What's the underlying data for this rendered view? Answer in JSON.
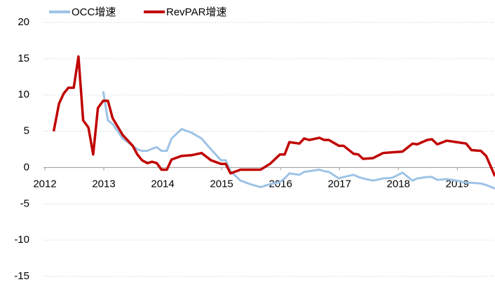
{
  "chart_data": {
    "type": "line",
    "x": [
      2012.15,
      2012.24,
      2012.32,
      2012.4,
      2012.49,
      2012.57,
      2012.65,
      2012.74,
      2012.82,
      2012.9,
      2012.99,
      2013.07,
      2013.15,
      2013.32,
      2013.49,
      2013.57,
      2013.65,
      2013.74,
      2013.82,
      2013.9,
      2013.98,
      2014.07,
      2014.15,
      2014.32,
      2014.49,
      2014.66,
      2014.82,
      2014.99,
      2015.07,
      2015.15,
      2015.32,
      2015.49,
      2015.66,
      2015.82,
      2015.99,
      2016.07,
      2016.15,
      2016.32,
      2016.4,
      2016.49,
      2016.66,
      2016.74,
      2016.82,
      2016.99,
      2017.07,
      2017.24,
      2017.32,
      2017.4,
      2017.57,
      2017.74,
      2017.9,
      2018.07,
      2018.24,
      2018.32,
      2018.49,
      2018.57,
      2018.66,
      2018.82,
      2018.99,
      2019.15,
      2019.24,
      2019.4,
      2019.49,
      2019.64
    ],
    "series": [
      {
        "name": "OCC增速",
        "color": "#9dc3e6",
        "values": [
          null,
          null,
          null,
          null,
          null,
          null,
          null,
          null,
          null,
          null,
          10.5,
          6.5,
          6,
          4,
          3,
          2.5,
          2.3,
          2.3,
          2.6,
          2.8,
          2.3,
          2.3,
          4,
          5.3,
          4.8,
          4,
          2.5,
          1,
          1,
          -0.5,
          -1.8,
          -2.3,
          -2.7,
          -2.3,
          -2,
          -1.5,
          -0.8,
          -1,
          -0.6,
          -0.5,
          -0.3,
          -0.5,
          -0.6,
          -1.5,
          -1.3,
          -1,
          -1.3,
          -1.5,
          -1.8,
          -1.5,
          -1.4,
          -0.7,
          -1.8,
          -1.5,
          -1.3,
          -1.3,
          -1.7,
          -1.6,
          -1.8,
          -2.1,
          -2.1,
          -2.2,
          -2.4,
          -2.9
        ]
      },
      {
        "name": "RevPAR增速",
        "color": "#c00000",
        "values": [
          5,
          8.8,
          10.2,
          11,
          11,
          15.3,
          6.5,
          5.5,
          1.8,
          8.2,
          9.2,
          9.2,
          6.8,
          4.5,
          3,
          1.8,
          1,
          0.6,
          0.8,
          0.6,
          -0.3,
          -0.3,
          1.1,
          1.6,
          1.7,
          2,
          1,
          0.5,
          0.5,
          -0.8,
          -0.3,
          -0.3,
          -0.3,
          0.5,
          1.8,
          1.8,
          3.5,
          3.3,
          4,
          3.8,
          4.1,
          3.8,
          3.8,
          3,
          3,
          1.9,
          1.8,
          1.2,
          1.3,
          2,
          2.1,
          2.2,
          3.3,
          3.2,
          3.8,
          3.9,
          3.2,
          3.7,
          3.5,
          3.3,
          2.4,
          2.3,
          1.6,
          -1.2
        ]
      }
    ],
    "xlim": [
      2012,
      2019.64
    ],
    "xticks": [
      2012,
      2013,
      2014,
      2015,
      2016,
      2017,
      2018,
      2019
    ],
    "ylim": [
      -15,
      20
    ],
    "yticks": [
      -15,
      -10,
      -5,
      0,
      5,
      10,
      15,
      20
    ],
    "grid": true,
    "legend": "top"
  }
}
